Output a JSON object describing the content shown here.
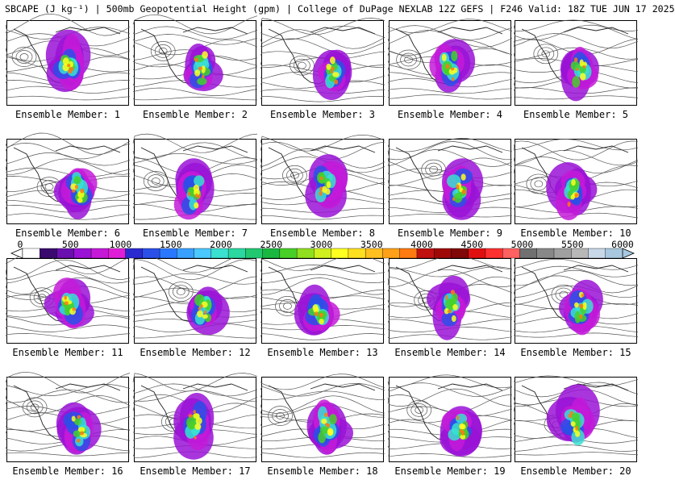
{
  "header": {
    "title": "SBCAPE (J kg⁻¹) | 500mb Geopotential Height (gpm) | College of DuPage NEXLAB 12Z GEFS | F246 Valid: 18Z TUE JUN 17 2025"
  },
  "colorbar": {
    "tick_labels": [
      "0",
      "500",
      "1000",
      "1500",
      "2000",
      "2500",
      "3000",
      "3500",
      "4000",
      "4500",
      "5000",
      "5500",
      "6000"
    ],
    "colors": [
      "#ffffff",
      "#3a0a6e",
      "#6a0fb0",
      "#9a12d6",
      "#c41ad8",
      "#e01ed8",
      "#2a2ad0",
      "#2a50e8",
      "#2a78ff",
      "#3aa0ff",
      "#4ac8ff",
      "#3ae0d0",
      "#2ad8a0",
      "#22c870",
      "#1ab840",
      "#48d028",
      "#90e020",
      "#d0f020",
      "#ffff20",
      "#ffe020",
      "#ffc020",
      "#ffa018",
      "#ff7a10",
      "#c01010",
      "#a00808",
      "#800808",
      "#e01010",
      "#ff3030",
      "#ff6060",
      "#707070",
      "#888888",
      "#a0a0a0",
      "#b8b8b8",
      "#c8d8e8",
      "#a8c8e0"
    ]
  },
  "members": [
    {
      "label": "Ensemble Member: 1"
    },
    {
      "label": "Ensemble Member: 2"
    },
    {
      "label": "Ensemble Member: 3"
    },
    {
      "label": "Ensemble Member: 4"
    },
    {
      "label": "Ensemble Member: 5"
    },
    {
      "label": "Ensemble Member: 6"
    },
    {
      "label": "Ensemble Member: 7"
    },
    {
      "label": "Ensemble Member: 8"
    },
    {
      "label": "Ensemble Member: 9"
    },
    {
      "label": "Ensemble Member: 10"
    },
    {
      "label": "Ensemble Member: 11"
    },
    {
      "label": "Ensemble Member: 12"
    },
    {
      "label": "Ensemble Member: 13"
    },
    {
      "label": "Ensemble Member: 14"
    },
    {
      "label": "Ensemble Member: 15"
    },
    {
      "label": "Ensemble Member: 16"
    },
    {
      "label": "Ensemble Member: 17"
    },
    {
      "label": "Ensemble Member: 18"
    },
    {
      "label": "Ensemble Member: 19"
    },
    {
      "label": "Ensemble Member: 20"
    }
  ]
}
